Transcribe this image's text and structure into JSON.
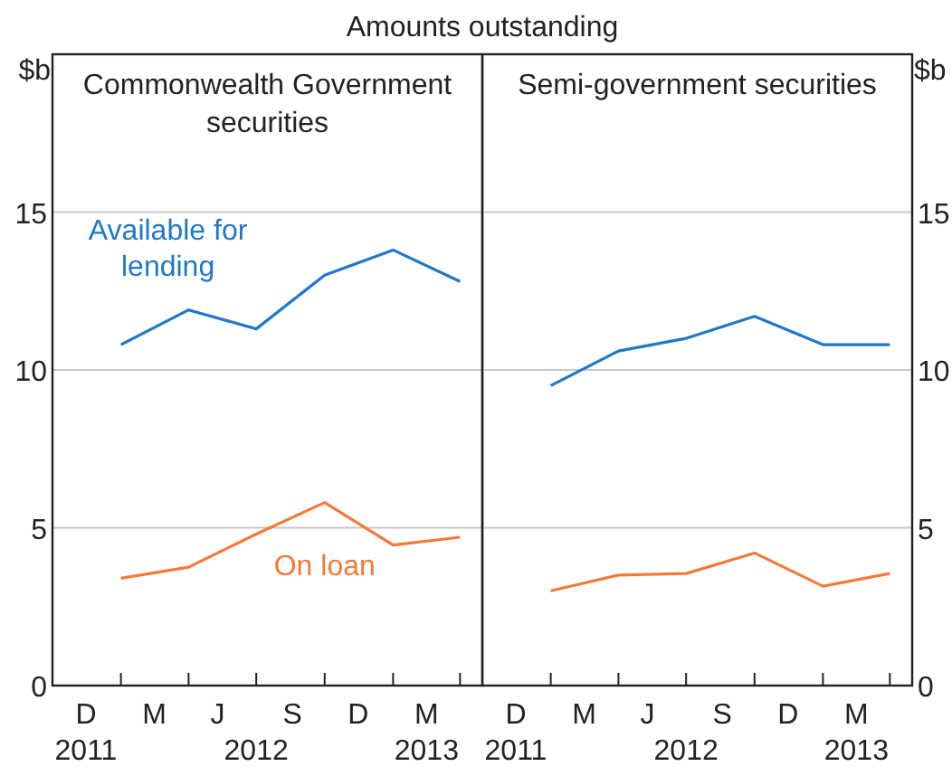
{
  "chart_data": [
    {
      "type": "line",
      "title": "Commonwealth Government securities",
      "subtitle": "Amounts outstanding",
      "ylabel": "$b",
      "x": [
        "2012-01-01",
        "2012-04-01",
        "2012-07-01",
        "2012-10-01",
        "2013-01-01",
        "2013-04-01"
      ],
      "series": [
        {
          "name": "Available for lending",
          "color": "#1f78c8",
          "values": [
            10.8,
            11.9,
            11.3,
            13.0,
            13.8,
            12.8
          ]
        },
        {
          "name": "On loan",
          "color": "#f47a3a",
          "values": [
            3.4,
            3.75,
            4.8,
            5.8,
            4.45,
            4.7
          ]
        }
      ],
      "xlim": [
        "2011-10-01",
        "2013-05-01"
      ],
      "xticks": [
        {
          "value": "2011-11-15",
          "label": "D\n2011"
        },
        {
          "value": "2012-01-01",
          "label": null
        },
        {
          "value": "2012-02-15",
          "label": "M"
        },
        {
          "value": "2012-04-01",
          "label": null
        },
        {
          "value": "2012-07-01",
          "label": null
        },
        {
          "value": "2012-07-01",
          "label": "J  S\n2012"
        },
        {
          "value": "2012-10-01",
          "label": null
        },
        {
          "value": "2012-11-15",
          "label": "D"
        },
        {
          "value": "2013-01-01",
          "label": null
        },
        {
          "value": "2013-02-15",
          "label": "M\n2013"
        },
        {
          "value": "2013-04-01",
          "label": null
        }
      ],
      "ylim": [
        0,
        20
      ],
      "yticks": [
        0,
        5,
        10,
        15
      ],
      "grid": "y",
      "legend": false
    },
    {
      "type": "line",
      "title": "Semi-government securities",
      "y2label": "$b",
      "x": [
        "2012-01-01",
        "2012-04-01",
        "2012-07-01",
        "2012-10-01",
        "2013-01-01",
        "2013-04-01"
      ],
      "series": [
        {
          "color": "#1f78c8",
          "axis": "y2",
          "values": [
            9.5,
            10.6,
            11.0,
            11.7,
            10.8,
            10.8
          ]
        },
        {
          "color": "#f47a3a",
          "axis": "y2",
          "values": [
            3.0,
            3.5,
            3.55,
            4.2,
            3.15,
            3.55
          ]
        }
      ],
      "xlim": [
        "2011-10-01",
        "2013-05-01"
      ],
      "xticks": [
        {
          "value": "2011-11-15",
          "label": "D\n2011"
        },
        {
          "value": "2012-01-01",
          "label": null
        },
        {
          "value": "2012-02-15",
          "label": "M"
        },
        {
          "value": "2012-04-01",
          "label": null
        },
        {
          "value": "2012-07-01",
          "label": null
        },
        {
          "value": "2012-07-01",
          "label": "J  S\n2012"
        },
        {
          "value": "2012-10-01",
          "label": null
        },
        {
          "value": "2012-11-15",
          "label": "D"
        },
        {
          "value": "2013-01-01",
          "label": null
        },
        {
          "value": "2013-02-15",
          "label": "M\n2013"
        },
        {
          "value": "2013-04-01",
          "label": null
        }
      ],
      "y2lim": [
        0,
        20
      ],
      "y2ticks": [
        0,
        5,
        10,
        15
      ],
      "grid": "y",
      "legend": false
    }
  ]
}
